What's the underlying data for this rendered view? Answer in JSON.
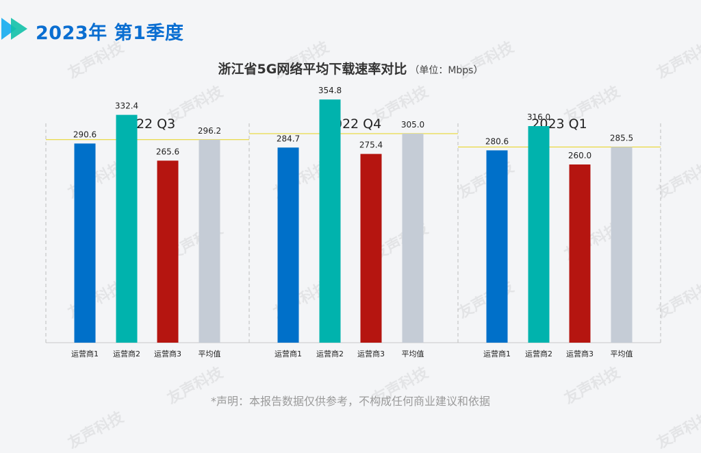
{
  "header": {
    "year_title": "2023年",
    "quarter_title": "第1季度"
  },
  "watermark_text": "友声科技",
  "chart_data": {
    "type": "bar",
    "title": "浙江省5G网络平均下载速率对比",
    "unit": "（单位：Mbps）",
    "categories": [
      "运营商1",
      "运营商2",
      "运营商3",
      "平均值"
    ],
    "panels": [
      {
        "name": "2022 Q3",
        "values": [
          290.6,
          332.4,
          265.6,
          296.2
        ],
        "labels": [
          "290.6",
          "332.4",
          "265.6",
          "296.2"
        ]
      },
      {
        "name": "2022 Q4",
        "values": [
          284.7,
          354.8,
          275.4,
          305.0
        ],
        "labels": [
          "284.7",
          "354.8",
          "275.4",
          "305.0"
        ]
      },
      {
        "name": "2023 Q1",
        "values": [
          280.6,
          316.0,
          260.0,
          285.5
        ],
        "labels": [
          "280.6",
          "316.0",
          "260.0",
          "285.5"
        ]
      }
    ],
    "colors": [
      "#0070c9",
      "#00b3ad",
      "#b51510",
      "#c5ccd6"
    ],
    "average_line_color": "#e6d21a",
    "ylim": [
      0,
      400
    ]
  },
  "footnote": "*声明：本报告数据仅供参考，不构成任何商业建议和依据"
}
